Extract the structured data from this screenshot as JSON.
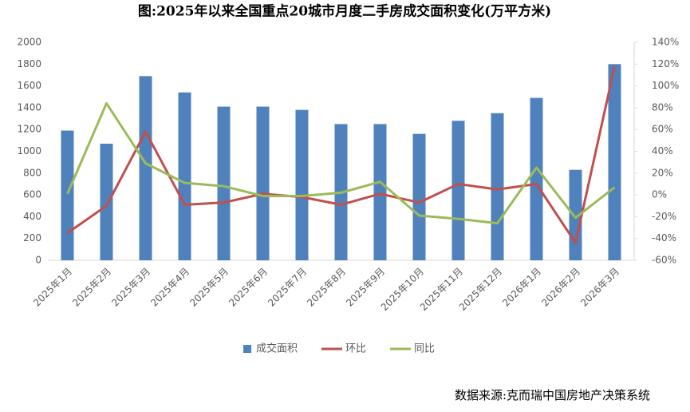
{
  "chart_data": {
    "type": "bar_line",
    "title": "图:2025年以来全国重点20城市月度二手房成交面积变化(万平方米)",
    "source": "数据来源:克而瑞中国房地产决策系统",
    "categories": [
      "2025年1月",
      "2025年2月",
      "2025年3月",
      "2025年4月",
      "2025年5月",
      "2025年6月",
      "2025年7月",
      "2025年8月",
      "2025年9月",
      "2025年10月",
      "2025年11月",
      "2025年12月",
      "2026年1月",
      "2026年2月",
      "2026年3月"
    ],
    "series": [
      {
        "name": "成交面积",
        "type": "bar",
        "color": "#4f81bd",
        "values": [
          1190,
          1070,
          1690,
          1540,
          1410,
          1410,
          1380,
          1250,
          1250,
          1160,
          1280,
          1350,
          1490,
          830,
          1800
        ]
      },
      {
        "name": "环比",
        "type": "line",
        "axis": "y2",
        "color": "#c0504d",
        "values": [
          -35,
          -10,
          58,
          -9,
          -7,
          1,
          -2,
          -9,
          1,
          -7,
          10,
          5,
          10,
          -44,
          118
        ]
      },
      {
        "name": "同比",
        "type": "line",
        "axis": "y2",
        "color": "#9bbb59",
        "values": [
          1,
          84,
          29,
          11,
          8,
          -1,
          -1,
          2,
          12,
          -19,
          -22,
          -26,
          25,
          -21,
          7
        ]
      }
    ],
    "ylim": [
      0,
      2000
    ],
    "yticks": [
      0,
      200,
      400,
      600,
      800,
      1000,
      1200,
      1400,
      1600,
      1800,
      2000
    ],
    "y2lim": [
      -60,
      140
    ],
    "y2ticks": [
      {
        "value": -60,
        "label": "-60%"
      },
      {
        "value": -40,
        "label": "-40%"
      },
      {
        "value": -20,
        "label": "-20%"
      },
      {
        "value": 0,
        "label": "0%"
      },
      {
        "value": 20,
        "label": "20%"
      },
      {
        "value": 40,
        "label": "40%"
      },
      {
        "value": 60,
        "label": "60%"
      },
      {
        "value": 80,
        "label": "80%"
      },
      {
        "value": 100,
        "label": "100%"
      },
      {
        "value": 120,
        "label": "120%"
      },
      {
        "value": 140,
        "label": "140%"
      }
    ],
    "legend": "bottom"
  }
}
